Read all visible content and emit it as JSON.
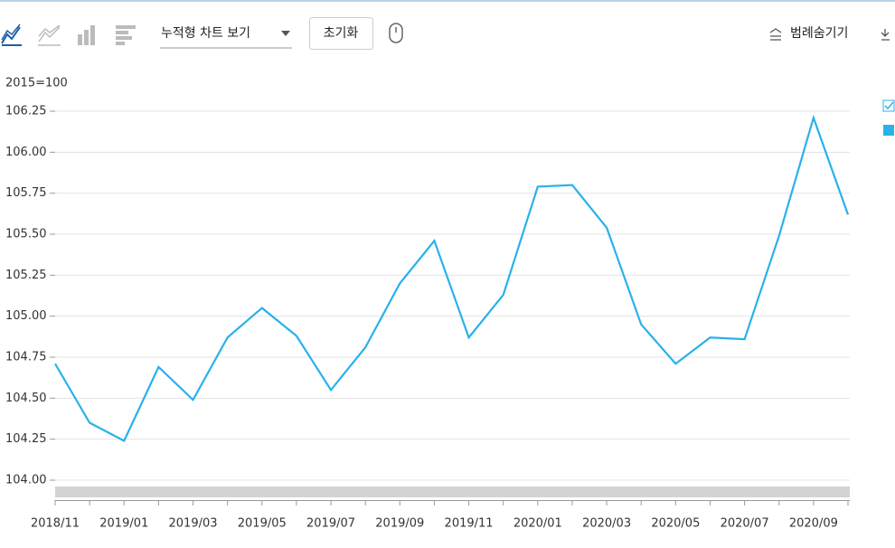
{
  "toolbar": {
    "chart_mode": "누적형 차트 보기",
    "reset": "초기화",
    "legend_toggle": "범례숨기기"
  },
  "chart_data": {
    "type": "line",
    "y_unit": "2015=100",
    "categories": [
      "2018/11",
      null,
      "2019/01",
      null,
      "2019/03",
      null,
      "2019/05",
      null,
      "2019/07",
      null,
      "2019/09",
      null,
      "2019/11",
      null,
      "2020/01",
      null,
      "2020/03",
      null,
      "2020/05",
      null,
      "2020/07",
      null,
      "2020/09",
      null
    ],
    "series": [
      {
        "color": "#29b1ec",
        "values": [
          104.71,
          104.35,
          104.24,
          104.69,
          104.49,
          104.87,
          105.05,
          104.88,
          104.55,
          104.81,
          105.2,
          105.46,
          104.87,
          105.13,
          105.79,
          105.8,
          105.54,
          104.95,
          104.71,
          104.87,
          104.86,
          105.49,
          106.21,
          105.62
        ]
      }
    ],
    "ylim": [
      104.0,
      106.25
    ],
    "yticks": [
      {
        "value": 104,
        "label": "104.00"
      },
      104.25,
      {
        "value": 104.5,
        "label": "104.50"
      },
      104.75,
      {
        "value": 105,
        "label": "105.00"
      },
      105.25,
      {
        "value": 105.5,
        "label": "105.50"
      },
      105.75,
      {
        "value": 106,
        "label": "106.00"
      },
      106.25
    ],
    "grid": true
  }
}
